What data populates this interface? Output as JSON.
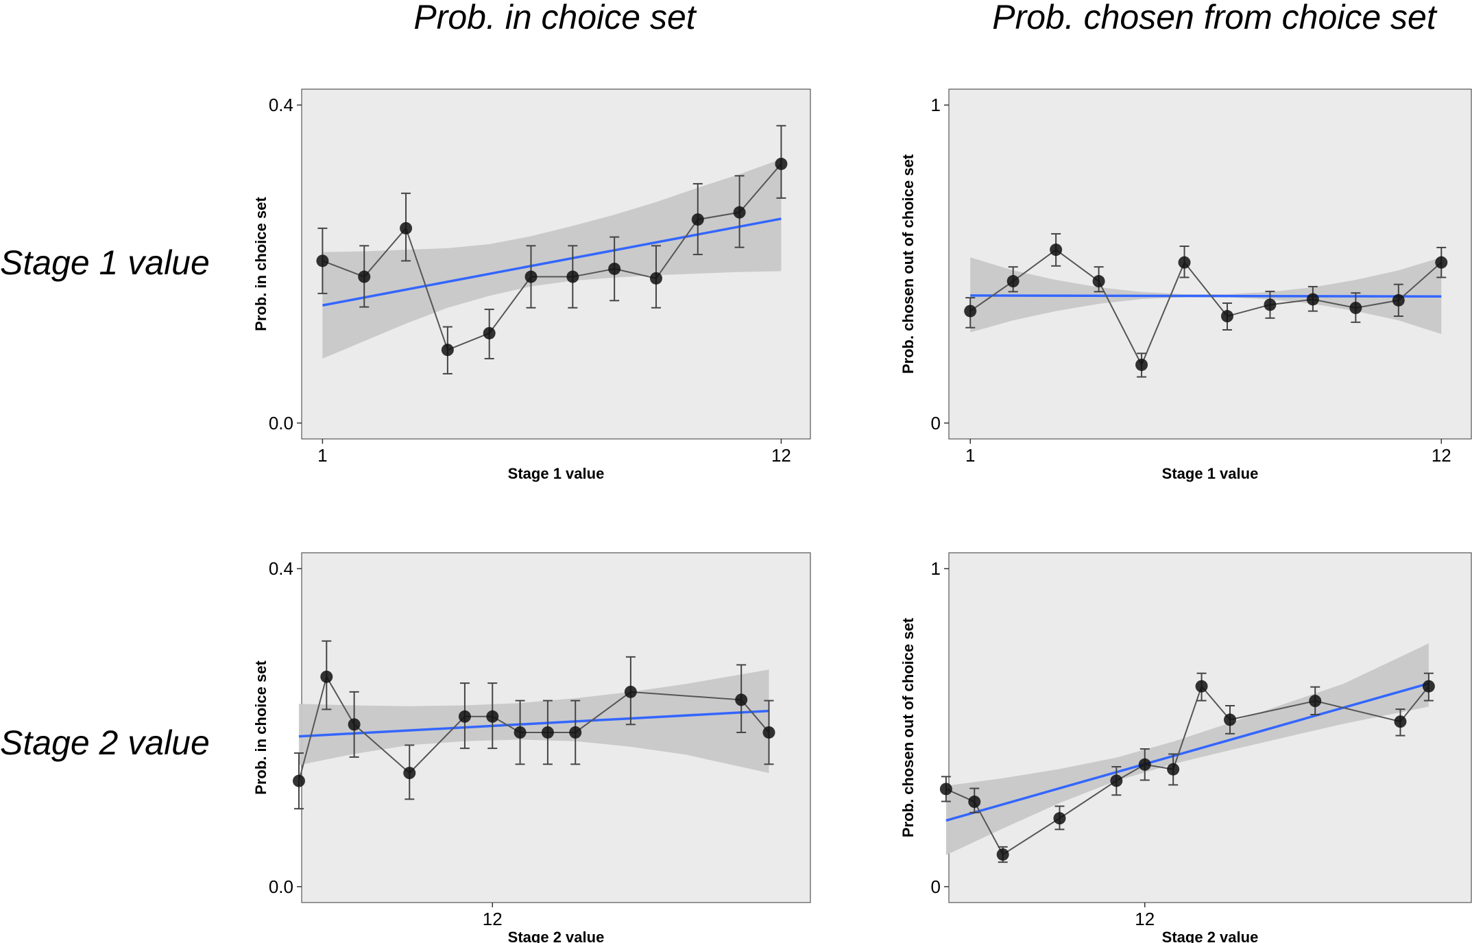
{
  "column_titles": [
    "Prob. in choice set",
    "Prob. chosen from choice set"
  ],
  "row_labels": [
    "Stage 1 value",
    "Stage 2 value"
  ],
  "colors": {
    "panel_bg": "#ebebeb",
    "ribbon": "#c8c8c8",
    "fit_line": "#3366ff",
    "points": "#111111",
    "connector": "#555555",
    "errorbar": "#444444"
  },
  "chart_data": [
    {
      "type": "line",
      "title": "",
      "xlabel": "Stage 1 value",
      "ylabel": "Prob. in choice set",
      "xlim": [
        0.5,
        12.7
      ],
      "ylim": [
        -0.02,
        0.42
      ],
      "xticks": [
        1,
        12
      ],
      "xtick_labels": [
        "1",
        "12"
      ],
      "yticks": [
        0.0,
        0.4
      ],
      "ytick_labels": [
        "0.0",
        "0.4"
      ],
      "series": [
        {
          "x": [
            1,
            2,
            3,
            4,
            5,
            6,
            7,
            8,
            9,
            10,
            11,
            12
          ],
          "values": [
            0.204,
            0.184,
            0.245,
            0.092,
            0.113,
            0.184,
            0.184,
            0.194,
            0.182,
            0.256,
            0.265,
            0.326
          ],
          "err_low": [
            0.163,
            0.146,
            0.204,
            0.062,
            0.081,
            0.145,
            0.145,
            0.154,
            0.145,
            0.212,
            0.221,
            0.283
          ],
          "err_high": [
            0.245,
            0.223,
            0.289,
            0.121,
            0.143,
            0.223,
            0.223,
            0.234,
            0.223,
            0.301,
            0.311,
            0.374
          ]
        }
      ],
      "fit": {
        "x": [
          1,
          12
        ],
        "y": [
          0.148,
          0.257
        ]
      },
      "ribbon": {
        "x": [
          1,
          2,
          3,
          4,
          5,
          6,
          7,
          8,
          9,
          10,
          11,
          12
        ],
        "lower": [
          0.081,
          0.103,
          0.125,
          0.145,
          0.16,
          0.172,
          0.179,
          0.183,
          0.186,
          0.188,
          0.19,
          0.191
        ],
        "upper": [
          0.215,
          0.216,
          0.218,
          0.22,
          0.225,
          0.235,
          0.248,
          0.262,
          0.278,
          0.296,
          0.313,
          0.332
        ]
      }
    },
    {
      "type": "line",
      "title": "",
      "xlabel": "Stage 1 value",
      "ylabel": "Prob. chosen out of choice set",
      "xlim": [
        0.5,
        12.7
      ],
      "ylim": [
        -0.05,
        1.05
      ],
      "xticks": [
        1,
        12
      ],
      "xtick_labels": [
        "1",
        "12"
      ],
      "yticks": [
        0,
        1
      ],
      "ytick_labels": [
        "0",
        "1"
      ],
      "series": [
        {
          "x": [
            1,
            2,
            3,
            4,
            5,
            6,
            7,
            8,
            9,
            10,
            11,
            12
          ],
          "values": [
            0.352,
            0.446,
            0.545,
            0.446,
            0.183,
            0.505,
            0.336,
            0.372,
            0.389,
            0.362,
            0.386,
            0.505
          ],
          "err_low": [
            0.3,
            0.413,
            0.494,
            0.413,
            0.145,
            0.458,
            0.293,
            0.33,
            0.352,
            0.317,
            0.336,
            0.458
          ],
          "err_high": [
            0.394,
            0.491,
            0.595,
            0.491,
            0.219,
            0.556,
            0.377,
            0.414,
            0.429,
            0.409,
            0.436,
            0.552
          ]
        }
      ],
      "fit": {
        "x": [
          1,
          12
        ],
        "y": [
          0.401,
          0.398
        ]
      },
      "ribbon": {
        "x": [
          1,
          2,
          3,
          4,
          5,
          6,
          7,
          8,
          9,
          10,
          11,
          12
        ],
        "lower": [
          0.285,
          0.323,
          0.352,
          0.375,
          0.39,
          0.396,
          0.396,
          0.389,
          0.375,
          0.352,
          0.323,
          0.28
        ],
        "upper": [
          0.521,
          0.48,
          0.45,
          0.427,
          0.412,
          0.405,
          0.405,
          0.412,
          0.427,
          0.45,
          0.48,
          0.521
        ]
      }
    },
    {
      "type": "line",
      "title": "",
      "xlabel": "Stage 2 value",
      "ylabel": "Prob. in choice set",
      "xlim": [
        0.1,
        18.5
      ],
      "ylim": [
        -0.02,
        0.42
      ],
      "xticks": [
        7
      ],
      "xtick_labels": [
        "12"
      ],
      "yticks": [
        0.0,
        0.4
      ],
      "ytick_labels": [
        "0.0",
        "0.4"
      ],
      "series": [
        {
          "x": [
            0,
            1,
            2,
            3,
            4,
            5,
            6,
            7,
            8,
            9,
            10,
            11,
            12,
            13,
            14,
            15,
            16,
            17
          ],
          "values": [
            0.133,
            0.264,
            0.204,
            null,
            0.143,
            null,
            0.214,
            0.214,
            0.194,
            0.194,
            0.194,
            null,
            0.245,
            null,
            null,
            null,
            0.235,
            0.194
          ],
          "err_low": [
            0.098,
            0.223,
            0.163,
            null,
            0.11,
            null,
            0.174,
            0.174,
            0.154,
            0.154,
            0.154,
            null,
            0.204,
            null,
            null,
            null,
            0.194,
            0.154
          ],
          "err_high": [
            0.168,
            0.309,
            0.245,
            null,
            0.178,
            null,
            0.256,
            0.256,
            0.234,
            0.234,
            0.234,
            null,
            0.289,
            null,
            null,
            null,
            0.279,
            0.234
          ]
        }
      ],
      "fit": {
        "x": [
          0,
          17
        ],
        "y": [
          0.189,
          0.221
        ]
      },
      "ribbon": {
        "x": [
          0,
          2,
          4,
          6,
          8,
          10,
          12,
          14,
          17
        ],
        "lower": [
          0.153,
          0.167,
          0.178,
          0.183,
          0.185,
          0.183,
          0.176,
          0.166,
          0.143
        ],
        "upper": [
          0.23,
          0.228,
          0.227,
          0.228,
          0.231,
          0.237,
          0.245,
          0.255,
          0.273
        ]
      }
    },
    {
      "type": "line",
      "title": "",
      "xlabel": "Stage 2 value",
      "ylabel": "Prob. chosen out of choice set",
      "xlim": [
        0.1,
        18.5
      ],
      "ylim": [
        -0.05,
        1.05
      ],
      "xticks": [
        7
      ],
      "xtick_labels": [
        "12"
      ],
      "yticks": [
        0,
        1
      ],
      "ytick_labels": [
        "0",
        "1"
      ],
      "series": [
        {
          "x": [
            0,
            1,
            2,
            3,
            4,
            5,
            6,
            7,
            8,
            9,
            10,
            11,
            12,
            13,
            14,
            15,
            16,
            17
          ],
          "values": [
            0.307,
            0.267,
            0.101,
            null,
            0.215,
            null,
            0.333,
            0.384,
            0.369,
            0.63,
            0.525,
            null,
            null,
            0.584,
            null,
            null,
            0.519,
            0.63
          ],
          "err_low": [
            0.268,
            0.233,
            0.077,
            null,
            0.18,
            null,
            0.288,
            0.335,
            0.32,
            0.585,
            0.481,
            null,
            null,
            0.541,
            null,
            null,
            0.475,
            0.585
          ],
          "err_high": [
            0.346,
            0.309,
            0.125,
            null,
            0.253,
            null,
            0.377,
            0.433,
            0.417,
            0.671,
            0.569,
            null,
            null,
            0.628,
            null,
            null,
            0.558,
            0.671
          ]
        }
      ],
      "fit": {
        "x": [
          0,
          17
        ],
        "y": [
          0.208,
          0.639
        ]
      },
      "ribbon": {
        "x": [
          0,
          2,
          4,
          6,
          8,
          10,
          12,
          14,
          17
        ],
        "lower": [
          0.099,
          0.183,
          0.263,
          0.333,
          0.386,
          0.429,
          0.471,
          0.512,
          0.566
        ],
        "upper": [
          0.317,
          0.341,
          0.37,
          0.406,
          0.456,
          0.515,
          0.577,
          0.638,
          0.765
        ]
      }
    }
  ]
}
